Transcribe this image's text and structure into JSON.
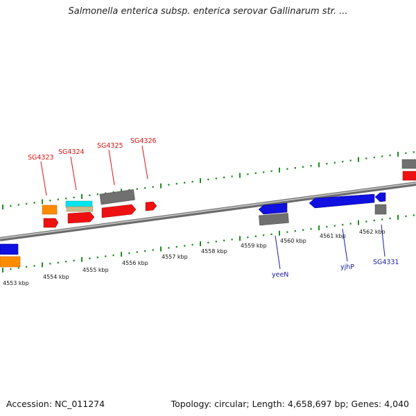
{
  "title": "Salmonella enterica subsp. enterica serovar Gallinarum str. ...",
  "footer": {
    "accession": "Accession: NC_011274",
    "topology": "Topology: circular; Length: 4,658,697 bp; Genes: 4,040"
  },
  "colors": {
    "backbone": "#8c8c8c",
    "tick": "#1e8c1e",
    "top_label": "#e01010",
    "bottom_label": "#1a1aa0",
    "red": "#ee1111",
    "orange": "#ff8c00",
    "cyan": "#00e5ee",
    "tan": "#c9bd8a",
    "grey": "#707070",
    "blue": "#1010e0"
  },
  "icons": [
    "gene-arrow-icon",
    "gene-block-icon"
  ],
  "diagram": {
    "axis_labels": [
      "4553 kbp",
      "4554 kbp",
      "4555 kbp",
      "4556 kbp",
      "4557 kbp",
      "4558 kbp",
      "4559 kbp",
      "4560 kbp",
      "4561 kbp",
      "4562 kbp"
    ],
    "top_genes": [
      "SG4323",
      "SG4324",
      "SG4325",
      "SG4326"
    ],
    "bottom_genes": [
      "yeeN",
      "yjhP",
      "SG4331"
    ]
  }
}
